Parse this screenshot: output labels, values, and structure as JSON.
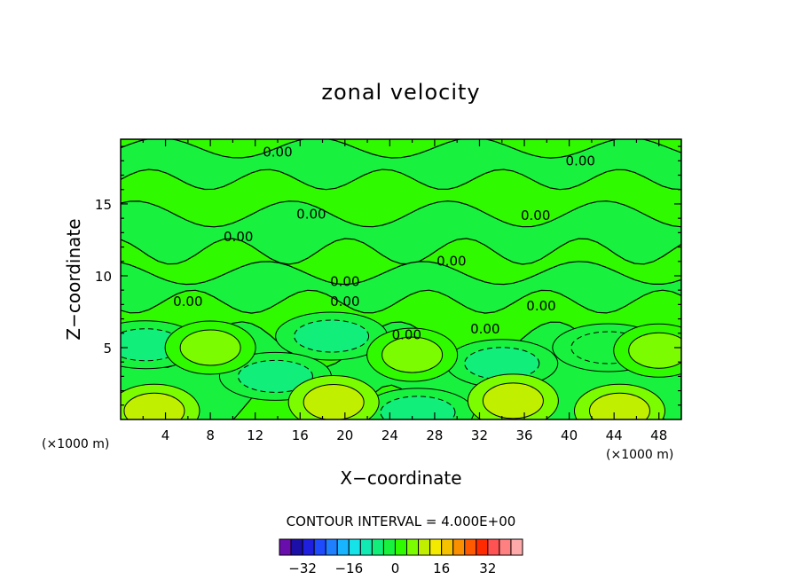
{
  "chart_data": {
    "type": "heatmap",
    "subtype": "filled contour",
    "title": "zonal velocity",
    "xlabel": "X−coordinate",
    "ylabel": "Z−coordinate",
    "x_unit_left": "(×1000 m)",
    "x_unit_right": "(×1000 m)",
    "xlim": [
      0,
      50
    ],
    "ylim": [
      0,
      19.5
    ],
    "x_ticks": [
      4,
      8,
      12,
      16,
      20,
      24,
      28,
      32,
      36,
      40,
      44,
      48
    ],
    "y_ticks": [
      5,
      10,
      15
    ],
    "contour_interval_text": "CONTOUR INTERVAL = 4.000E+00",
    "contour_labels": [
      {
        "text": "0.00",
        "x": 14,
        "z": 18.6
      },
      {
        "text": "0.00",
        "x": 41,
        "z": 18.0
      },
      {
        "text": "0.00",
        "x": 17,
        "z": 14.3
      },
      {
        "text": "0.00",
        "x": 37,
        "z": 14.2
      },
      {
        "text": "0.00",
        "x": 10.5,
        "z": 12.7
      },
      {
        "text": "0.00",
        "x": 29.5,
        "z": 11.0
      },
      {
        "text": "0.00",
        "x": 20,
        "z": 9.6
      },
      {
        "text": "0.00",
        "x": 6,
        "z": 8.2
      },
      {
        "text": "0.00",
        "x": 20,
        "z": 8.2
      },
      {
        "text": "0.00",
        "x": 37.5,
        "z": 7.9
      },
      {
        "text": "0.00",
        "x": 25.5,
        "z": 5.9
      },
      {
        "text": "0.00",
        "x": 32.5,
        "z": 6.3
      }
    ],
    "features": [
      {
        "kind": "low",
        "x": 2.2,
        "z": 5.2,
        "value": -8
      },
      {
        "kind": "low",
        "x": 18.8,
        "z": 5.8,
        "value": -8
      },
      {
        "kind": "low",
        "x": 13.8,
        "z": 3.0,
        "value": -8
      },
      {
        "kind": "low",
        "x": 34.0,
        "z": 3.9,
        "value": -8
      },
      {
        "kind": "low",
        "x": 26.5,
        "z": 0.5,
        "value": -8
      },
      {
        "kind": "low",
        "x": 43.5,
        "z": 5.0,
        "value": -4
      },
      {
        "kind": "high",
        "x": 26.0,
        "z": 4.5,
        "value": 4
      },
      {
        "kind": "high",
        "x": 8.0,
        "z": 5.0,
        "value": 4
      },
      {
        "kind": "high",
        "x": 35.0,
        "z": 1.3,
        "value": 8
      },
      {
        "kind": "high",
        "x": 19.0,
        "z": 1.2,
        "value": 8
      },
      {
        "kind": "high",
        "x": 3.0,
        "z": 0.6,
        "value": 8
      },
      {
        "kind": "high",
        "x": 44.5,
        "z": 0.6,
        "value": 8
      },
      {
        "kind": "high",
        "x": 48.0,
        "z": 4.8,
        "value": 4
      }
    ],
    "colorbar": {
      "tick_labels": [
        "−32",
        "−16",
        "0",
        "16",
        "32"
      ],
      "tick_values": [
        -32,
        -16,
        0,
        16,
        32
      ],
      "colors": [
        "#6a0dad",
        "#1c0fa8",
        "#1f1fe0",
        "#1f4bff",
        "#1e7fff",
        "#19b4ff",
        "#16e3e8",
        "#11eab2",
        "#11ee7a",
        "#18f23f",
        "#2ffa00",
        "#7cfc00",
        "#c0f000",
        "#f3ea00",
        "#f6c200",
        "#fa8f00",
        "#ff5a00",
        "#ff2a00",
        "#ff5252",
        "#ff8080",
        "#ffaaaa"
      ]
    }
  }
}
